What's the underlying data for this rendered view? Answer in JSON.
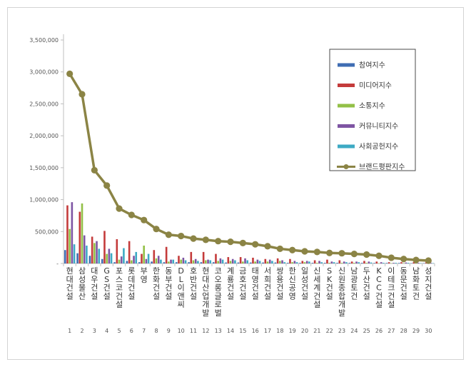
{
  "chart_data": {
    "type": "bar",
    "title": "",
    "xlabel": "",
    "ylabel": "",
    "ylim": [
      0,
      3500000
    ],
    "yticks": [
      0,
      500000,
      1000000,
      1500000,
      2000000,
      2500000,
      3000000,
      3500000
    ],
    "ytick_labels": [
      "-",
      "500,000",
      "1,000,000",
      "1,500,000",
      "2,000,000",
      "2,500,000",
      "3,000,000",
      "3,500,000"
    ],
    "grid": false,
    "legend_position": "top-right",
    "categories": [
      "현대건설",
      "삼성물산",
      "대우건설",
      "GS건설",
      "포스코건설",
      "롯데건설",
      "부영",
      "한화건설",
      "동부건설",
      "DL이앤씨",
      "호반건설",
      "현대산업개발",
      "코오롱글로벌",
      "계룡건설",
      "금호건설",
      "태영건설",
      "서희건설",
      "쌍용건설",
      "한신공영",
      "일성건설",
      "신세계건설",
      "SK건설",
      "신원종합개발",
      "남광토건",
      "두산건설",
      "KCC건설",
      "이테크건설",
      "동문건설",
      "남화토건",
      "성지건설"
    ],
    "ranks": [
      "1",
      "2",
      "3",
      "4",
      "5",
      "6",
      "7",
      "8",
      "9",
      "10",
      "11",
      "12",
      "13",
      "14",
      "15",
      "16",
      "17",
      "18",
      "19",
      "20",
      "21",
      "22",
      "23",
      "24",
      "25",
      "26",
      "27",
      "28",
      "29",
      "30"
    ],
    "series": [
      {
        "name": "참여지수",
        "color": "#3f6db3",
        "kind": "bar",
        "values": [
          210000,
          160000,
          120000,
          70000,
          20000,
          40000,
          20000,
          30000,
          20000,
          20000,
          20000,
          20000,
          20000,
          15000,
          15000,
          15000,
          15000,
          15000,
          10000,
          10000,
          10000,
          10000,
          10000,
          10000,
          10000,
          8000,
          8000,
          8000,
          5000,
          5000
        ]
      },
      {
        "name": "미디어지수",
        "color": "#c43b3b",
        "kind": "bar",
        "values": [
          910000,
          810000,
          420000,
          510000,
          380000,
          350000,
          150000,
          210000,
          260000,
          120000,
          180000,
          180000,
          150000,
          100000,
          100000,
          90000,
          70000,
          80000,
          70000,
          40000,
          50000,
          60000,
          50000,
          30000,
          40000,
          30000,
          20000,
          20000,
          20000,
          15000
        ]
      },
      {
        "name": "소통지수",
        "color": "#93c047",
        "kind": "bar",
        "values": [
          540000,
          940000,
          320000,
          150000,
          60000,
          50000,
          280000,
          80000,
          30000,
          60000,
          50000,
          50000,
          40000,
          40000,
          30000,
          30000,
          30000,
          40000,
          20000,
          20000,
          10000,
          10000,
          10000,
          10000,
          10000,
          5000,
          5000,
          5000,
          5000,
          5000
        ]
      },
      {
        "name": "커뮤니티지수",
        "color": "#7e55a3",
        "kind": "bar",
        "values": [
          960000,
          440000,
          350000,
          230000,
          110000,
          120000,
          70000,
          120000,
          60000,
          90000,
          70000,
          60000,
          80000,
          70000,
          80000,
          60000,
          60000,
          50000,
          40000,
          40000,
          40000,
          30000,
          30000,
          30000,
          30000,
          20000,
          10000,
          15000,
          10000,
          10000
        ]
      },
      {
        "name": "사회공헌지수",
        "color": "#3daac4",
        "kind": "bar",
        "values": [
          300000,
          280000,
          230000,
          160000,
          240000,
          180000,
          150000,
          60000,
          60000,
          50000,
          40000,
          50000,
          60000,
          50000,
          50000,
          40000,
          40000,
          20000,
          20000,
          30000,
          20000,
          20000,
          20000,
          20000,
          15000,
          10000,
          10000,
          10000,
          5000,
          5000
        ]
      },
      {
        "name": "브랜드평판지수",
        "color": "#8b8445",
        "kind": "line",
        "values": [
          2970000,
          2650000,
          1460000,
          1220000,
          860000,
          760000,
          680000,
          540000,
          450000,
          430000,
          390000,
          370000,
          350000,
          340000,
          320000,
          300000,
          270000,
          230000,
          210000,
          190000,
          180000,
          165000,
          160000,
          150000,
          140000,
          120000,
          90000,
          70000,
          55000,
          45000
        ]
      }
    ]
  }
}
